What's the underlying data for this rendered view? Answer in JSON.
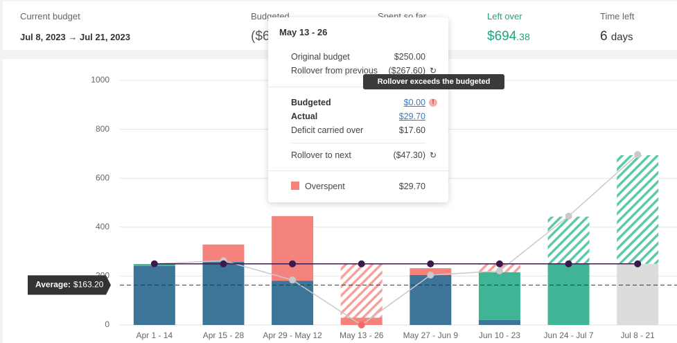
{
  "header": {
    "current_budget": {
      "label": "Current budget",
      "value": "Jul 8, 2023 → Jul 21, 2023"
    },
    "budgeted": {
      "label": "Budgeted",
      "value": "($6"
    },
    "spent": {
      "label": "Spent so far"
    },
    "left_over": {
      "label": "Left over",
      "value": "$694",
      "cents": ".38"
    },
    "time_left": {
      "label": "Time left",
      "value": "6",
      "unit": "days"
    }
  },
  "chart_data": {
    "type": "bar",
    "stacked": true,
    "grid": true,
    "categories": [
      "Apr 1 - 14",
      "Apr 15 - 28",
      "Apr 29 - May 12",
      "May 13 - 26",
      "May 27 - Jun 9",
      "Jun 10 - 23",
      "Jun 24 - Jul 7",
      "Jul 8 - 21"
    ],
    "ylim": [
      0,
      1000
    ],
    "yticks": [
      0,
      200,
      400,
      600,
      800,
      1000
    ],
    "series": [
      {
        "color": "#3d7599",
        "values": [
          241,
          258,
          181,
          0,
          204,
          20,
          0,
          0
        ]
      },
      {
        "color": "#f4837d",
        "values": [
          0,
          71,
          264,
          29.7,
          28,
          0,
          0,
          0
        ]
      },
      {
        "color": "#3fb595",
        "values": [
          8,
          0,
          0,
          0,
          0,
          196,
          250,
          0
        ]
      },
      {
        "color": "#dcdcdc",
        "values": [
          0,
          0,
          0,
          0,
          0,
          0,
          0,
          250
        ]
      },
      {
        "color": "#5ccaa9",
        "hatched": true,
        "values": [
          0,
          0,
          0,
          0,
          0,
          0,
          193,
          444
        ]
      },
      {
        "color": "#f6a19c",
        "hatched": true,
        "values": [
          0,
          0,
          0,
          220,
          0,
          35,
          0,
          0
        ]
      }
    ],
    "budget_line": {
      "color": "#3a1a4c",
      "values": [
        250,
        250,
        250,
        250,
        250,
        250,
        250,
        250
      ]
    },
    "trend_line": {
      "color": "#c9c9c9",
      "zero_color": "#f06b6b",
      "values": [
        250,
        263,
        184,
        0,
        204,
        221,
        445,
        697
      ]
    },
    "average": {
      "label": "Average:",
      "value": 163.2,
      "value_label": "$163.20"
    }
  },
  "tooltip": {
    "title": "May 13 - 26",
    "original_budget": {
      "label": "Original budget",
      "value": "$250.00"
    },
    "rollover_from_previous": {
      "label": "Rollover from previous",
      "value": "($267.60)"
    },
    "budgeted": {
      "label": "Budgeted",
      "value": "$0.00"
    },
    "actual": {
      "label": "Actual",
      "value": "$29.70"
    },
    "deficit": {
      "label": "Deficit carried over",
      "value": "$17.60"
    },
    "rollover_to_next": {
      "label": "Rollover to next",
      "value": "($47.30)"
    },
    "overspent": {
      "label": "Overspent",
      "value": "$29.70"
    },
    "warning": "Rollover exceeds the budgeted amount"
  }
}
